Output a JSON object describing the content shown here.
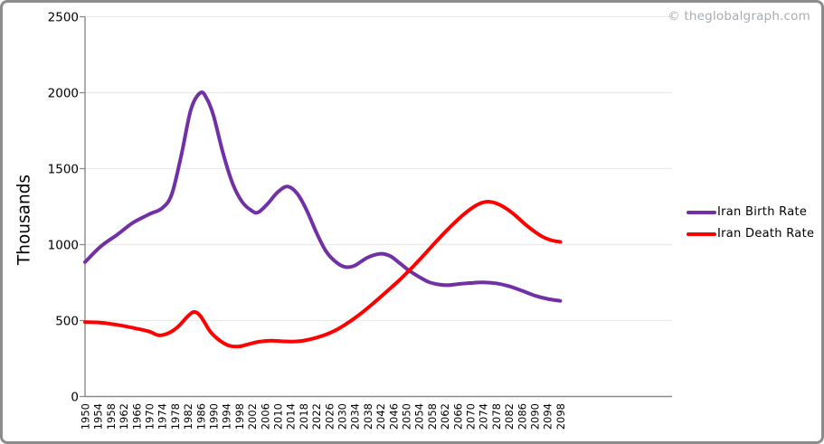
{
  "watermark": "© theglobalgraph.com",
  "colors": {
    "frame": "#8C8C8C",
    "axis": "#8A8A8A",
    "grid": "#EBEBEB",
    "watermark": "#A7ACB4",
    "birth": "#7130A6",
    "death": "#FF0000"
  },
  "chart_data": {
    "type": "line",
    "title": "",
    "xlabel": "",
    "ylabel": "Thousands",
    "ylim": [
      0,
      2500
    ],
    "y_ticks": [
      0,
      500,
      1000,
      1500,
      2000,
      2500
    ],
    "x_range": [
      1950,
      2100
    ],
    "x_tick_labels": [
      "1950",
      "1954",
      "1958",
      "1962",
      "1966",
      "1970",
      "1974",
      "1978",
      "1982",
      "1986",
      "1990",
      "1994",
      "1998",
      "2002",
      "2006",
      "2010",
      "2014",
      "2018",
      "2022",
      "2026",
      "2030",
      "2034",
      "2038",
      "2042",
      "2046",
      "2050",
      "2054",
      "2058",
      "2062",
      "2066",
      "2070",
      "2074",
      "2078",
      "2082",
      "2086",
      "2090",
      "2094",
      "2098"
    ],
    "grid": "horizontal",
    "legend_position": "right",
    "series": [
      {
        "name": "Iran Birth Rate",
        "color": "#7130A6",
        "points": [
          [
            1950,
            885
          ],
          [
            1955,
            990
          ],
          [
            1960,
            1065
          ],
          [
            1965,
            1145
          ],
          [
            1970,
            1200
          ],
          [
            1974,
            1240
          ],
          [
            1977,
            1330
          ],
          [
            1980,
            1590
          ],
          [
            1983,
            1890
          ],
          [
            1986,
            2000
          ],
          [
            1988,
            1958
          ],
          [
            1990,
            1850
          ],
          [
            1993,
            1600
          ],
          [
            1996,
            1400
          ],
          [
            1999,
            1280
          ],
          [
            2002,
            1222
          ],
          [
            2004,
            1213
          ],
          [
            2007,
            1272
          ],
          [
            2010,
            1345
          ],
          [
            2013,
            1382
          ],
          [
            2016,
            1338
          ],
          [
            2019,
            1228
          ],
          [
            2022,
            1082
          ],
          [
            2025,
            958
          ],
          [
            2028,
            888
          ],
          [
            2031,
            853
          ],
          [
            2034,
            862
          ],
          [
            2038,
            915
          ],
          [
            2042,
            940
          ],
          [
            2045,
            925
          ],
          [
            2048,
            878
          ],
          [
            2051,
            828
          ],
          [
            2054,
            788
          ],
          [
            2057,
            754
          ],
          [
            2060,
            738
          ],
          [
            2063,
            733
          ],
          [
            2066,
            740
          ],
          [
            2070,
            747
          ],
          [
            2074,
            751
          ],
          [
            2078,
            745
          ],
          [
            2082,
            727
          ],
          [
            2086,
            697
          ],
          [
            2090,
            665
          ],
          [
            2094,
            643
          ],
          [
            2098,
            630
          ]
        ]
      },
      {
        "name": "Iran Death Rate",
        "color": "#FF0000",
        "points": [
          [
            1950,
            490
          ],
          [
            1955,
            486
          ],
          [
            1960,
            472
          ],
          [
            1965,
            452
          ],
          [
            1970,
            428
          ],
          [
            1973,
            403
          ],
          [
            1976,
            418
          ],
          [
            1979,
            460
          ],
          [
            1982,
            528
          ],
          [
            1984,
            557
          ],
          [
            1986,
            528
          ],
          [
            1989,
            428
          ],
          [
            1992,
            368
          ],
          [
            1995,
            334
          ],
          [
            1998,
            330
          ],
          [
            2001,
            345
          ],
          [
            2004,
            360
          ],
          [
            2008,
            368
          ],
          [
            2012,
            363
          ],
          [
            2016,
            363
          ],
          [
            2020,
            376
          ],
          [
            2024,
            400
          ],
          [
            2028,
            436
          ],
          [
            2032,
            487
          ],
          [
            2036,
            548
          ],
          [
            2040,
            618
          ],
          [
            2044,
            692
          ],
          [
            2048,
            768
          ],
          [
            2052,
            852
          ],
          [
            2056,
            942
          ],
          [
            2060,
            1035
          ],
          [
            2064,
            1122
          ],
          [
            2068,
            1200
          ],
          [
            2072,
            1260
          ],
          [
            2075,
            1282
          ],
          [
            2078,
            1272
          ],
          [
            2081,
            1240
          ],
          [
            2084,
            1192
          ],
          [
            2088,
            1118
          ],
          [
            2092,
            1058
          ],
          [
            2095,
            1030
          ],
          [
            2098,
            1018
          ]
        ]
      }
    ]
  }
}
